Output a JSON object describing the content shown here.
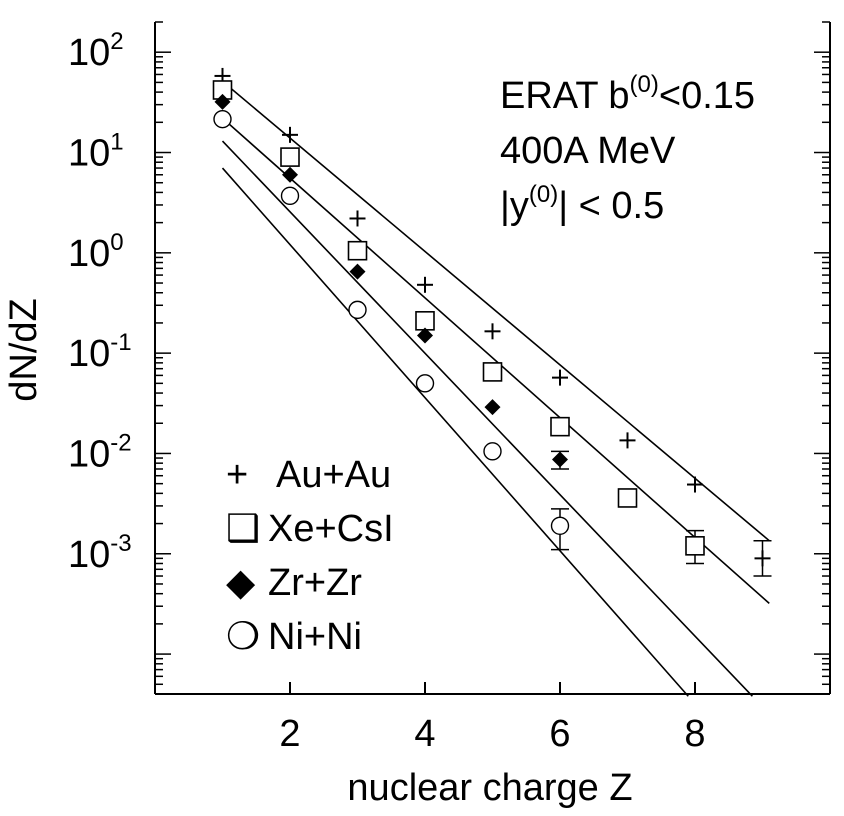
{
  "chart_data": {
    "type": "scatter",
    "xlabel": "nuclear charge Z",
    "ylabel": "dN/dZ",
    "xlim": [
      0,
      10
    ],
    "ylim": [
      4e-05,
      200
    ],
    "yscale": "log",
    "x_ticks": [
      "2",
      "4",
      "6",
      "8"
    ],
    "y_ticks": [
      {
        "base": "10",
        "exp": "2"
      },
      {
        "base": "10",
        "exp": "1"
      },
      {
        "base": "10",
        "exp": "0"
      },
      {
        "base": "10",
        "exp": "-1"
      },
      {
        "base": "10",
        "exp": "-2"
      },
      {
        "base": "10",
        "exp": "-3"
      }
    ],
    "annotation": {
      "line1_main": "ERAT  b",
      "line1_sup": "(0)",
      "line1_tail": "<0.15",
      "line2": "400A MeV",
      "line3_pre": "|y",
      "line3_sup": "(0)",
      "line3_tail": "| < 0.5"
    },
    "series": [
      {
        "name": "Au+Au",
        "marker": "plus",
        "x": [
          1,
          2,
          3,
          4,
          5,
          6,
          7,
          8,
          9
        ],
        "y": [
          58,
          15,
          2.2,
          0.48,
          0.165,
          0.057,
          0.0135,
          0.0049,
          0.0009
        ],
        "err": [
          null,
          null,
          null,
          null,
          null,
          null,
          null,
          null,
          [
            0.0006,
            0.00135
          ]
        ],
        "fit": [
          [
            1.1,
            45
          ],
          [
            9.1,
            0.00135
          ]
        ]
      },
      {
        "name": "Xe+CsI",
        "marker": "open-square",
        "x": [
          1,
          2,
          3,
          4,
          5,
          6,
          7,
          8
        ],
        "y": [
          42,
          9,
          1.05,
          0.21,
          0.065,
          0.0185,
          0.0036,
          0.0012
        ],
        "err": [
          null,
          null,
          null,
          null,
          null,
          null,
          [
            0.0032,
            0.0041
          ],
          [
            0.0008,
            0.0017
          ]
        ],
        "fit": [
          [
            1.0,
            22
          ],
          [
            9.1,
            0.00032
          ]
        ]
      },
      {
        "name": "Zr+Zr",
        "marker": "filled-diamond",
        "x": [
          1,
          2,
          3,
          4,
          5,
          6
        ],
        "y": [
          32,
          6,
          0.65,
          0.15,
          0.029,
          0.0087
        ],
        "err": [
          null,
          null,
          null,
          null,
          null,
          [
            0.007,
            0.0105
          ]
        ],
        "fit": [
          [
            1.0,
            13
          ],
          [
            8.85,
            3.8e-05
          ]
        ]
      },
      {
        "name": "Ni+Ni",
        "marker": "open-circle",
        "x": [
          1,
          2,
          3,
          4,
          5,
          6
        ],
        "y": [
          21.5,
          3.7,
          0.27,
          0.05,
          0.0105,
          0.0019
        ],
        "err": [
          null,
          null,
          null,
          null,
          null,
          [
            0.0011,
            0.0028
          ]
        ],
        "fit": [
          [
            1.0,
            7
          ],
          [
            7.9,
            3.8e-05
          ]
        ]
      }
    ],
    "legend": {
      "placement": "lower-left",
      "entries": [
        {
          "symbol": "+",
          "label": "Au+Au"
        },
        {
          "symbol": "❑",
          "label": "Xe+CsI"
        },
        {
          "symbol": "◆",
          "label": "Zr+Zr"
        },
        {
          "symbol": "❍",
          "label": "Ni+Ni"
        }
      ]
    }
  }
}
